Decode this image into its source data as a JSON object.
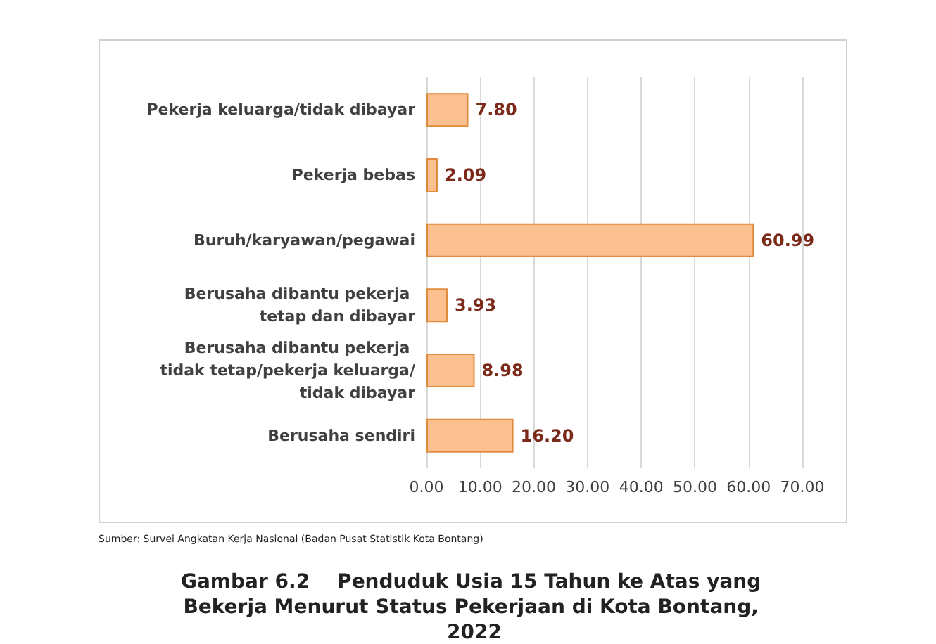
{
  "chart_data": {
    "type": "bar",
    "orientation": "horizontal",
    "title": "Gambar 6.2    Penduduk Usia 15 Tahun ke Atas yang Bekerja Menurut Status Pekerjaan di Kota Bontang, 2022",
    "categories": [
      "Pekerja keluarga/tidak dibayar",
      "Pekerja bebas",
      "Buruh/karyawan/pegawai",
      "Berusaha dibantu pekerja tetap dan dibayar",
      "Berusaha dibantu pekerja tidak tetap/pekerja keluarga/tidak dibayar",
      "Berusaha sendiri"
    ],
    "values": [
      7.8,
      2.09,
      60.99,
      3.93,
      8.98,
      16.2
    ],
    "value_labels": [
      "7.80",
      "2.09",
      "60.99",
      "3.93",
      "8.98",
      "16.20"
    ],
    "color": "#fac090",
    "xlim": [
      0,
      70
    ],
    "xticks": [
      {
        "value": 0,
        "label": "0.00"
      },
      {
        "value": 10,
        "label": "10.00"
      },
      {
        "value": 20,
        "label": "20.00"
      },
      {
        "value": 30,
        "label": "30.00"
      },
      {
        "value": 40,
        "label": "40.00"
      },
      {
        "value": 50,
        "label": "50.00"
      },
      {
        "value": 60,
        "label": "60.00"
      },
      {
        "value": 70,
        "label": "70.00"
      }
    ],
    "grid": "x",
    "annotations": [
      "Sumber: Survei Angkatan Kerja Nasional (Badan Pusat Statistik Kota Bontang)"
    ]
  }
}
